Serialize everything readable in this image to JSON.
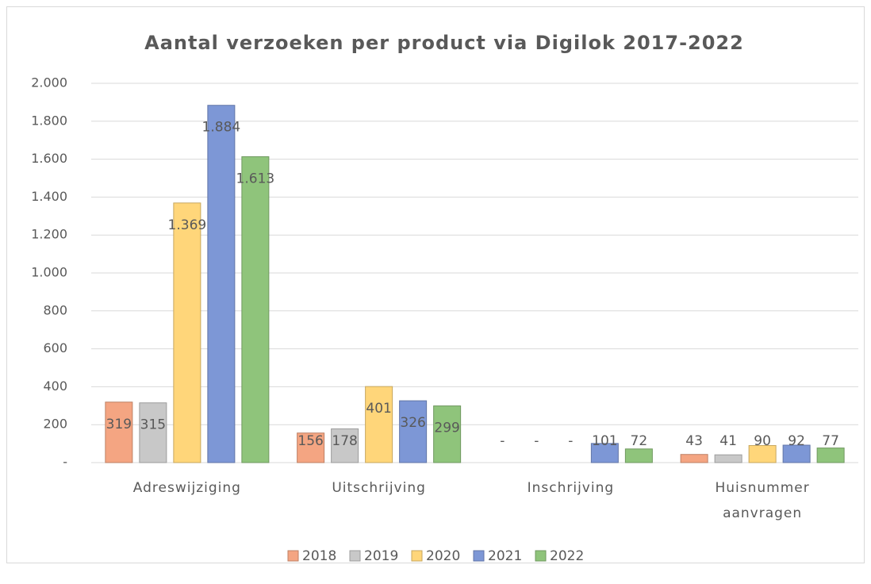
{
  "chart_data": {
    "type": "bar",
    "title": "Aantal verzoeken per product via Digilok 2017-2022",
    "categories": [
      "Adreswijziging",
      "Uitschrijving",
      "Inschrijving",
      "Huisnummer aanvragen"
    ],
    "series": [
      {
        "name": "2018",
        "color": "#f4a582",
        "values": [
          319,
          156,
          0,
          43
        ],
        "value_labels": [
          "319",
          "156",
          "-",
          "43"
        ]
      },
      {
        "name": "2019",
        "color": "#c8c8c8",
        "values": [
          315,
          178,
          0,
          41
        ],
        "value_labels": [
          "315",
          "178",
          "-",
          "41"
        ]
      },
      {
        "name": "2020",
        "color": "#ffd67a",
        "values": [
          1369,
          401,
          0,
          90
        ],
        "value_labels": [
          "1.369",
          "401",
          "-",
          "90"
        ]
      },
      {
        "name": "2021",
        "color": "#7d97d6",
        "values": [
          1884,
          326,
          101,
          92
        ],
        "value_labels": [
          "1.884",
          "326",
          "101",
          "92"
        ]
      },
      {
        "name": "2022",
        "color": "#8fc47b",
        "values": [
          1613,
          299,
          72,
          77
        ],
        "value_labels": [
          "1.613",
          "299",
          "72",
          "77"
        ]
      }
    ],
    "ylim": [
      0,
      2000
    ],
    "yticks": [
      {
        "value": 0,
        "label": "-"
      },
      200,
      400,
      600,
      800,
      {
        "value": 1000,
        "label": "1.000"
      },
      {
        "value": 1200,
        "label": "1.200"
      },
      {
        "value": 1400,
        "label": "1.400"
      },
      {
        "value": 1600,
        "label": "1.600"
      },
      {
        "value": 1800,
        "label": "1.800"
      },
      {
        "value": 2000,
        "label": "2.000"
      }
    ],
    "grid": true,
    "legend": "bottom"
  }
}
